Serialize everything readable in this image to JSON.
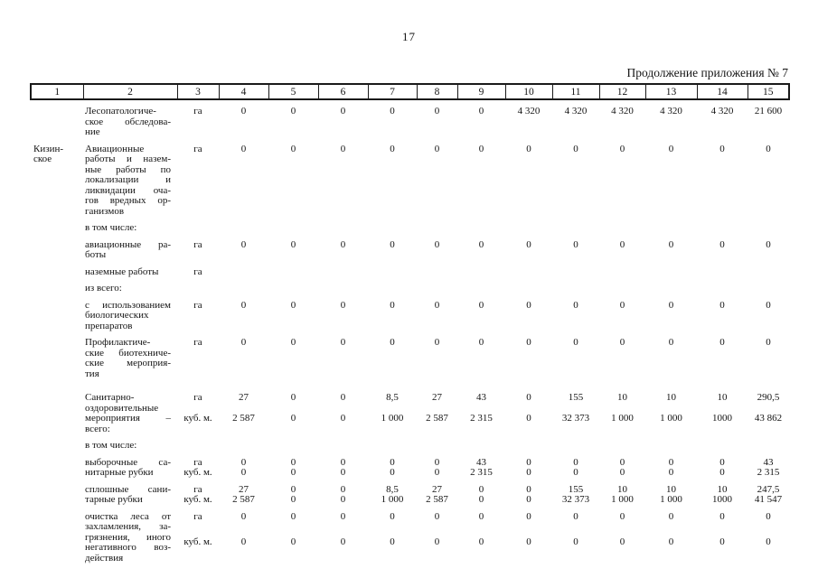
{
  "page": {
    "number": "17",
    "continuation_label": "Продолжение приложения № 7"
  },
  "table": {
    "column_headers": [
      "1",
      "2",
      "3",
      "4",
      "5",
      "6",
      "7",
      "8",
      "9",
      "10",
      "11",
      "12",
      "13",
      "14",
      "15"
    ],
    "groups": [
      {
        "region_lines": [],
        "label_lines": [
          "Лесопатологиче-",
          "ское обследова-",
          "ние"
        ],
        "units": [
          {
            "unit": "га",
            "values": [
              "0",
              "0",
              "0",
              "0",
              "0",
              "0",
              "4 320",
              "4 320",
              "4 320",
              "4 320",
              "4 320",
              "21 600"
            ]
          }
        ]
      },
      {
        "region_lines": [
          "Кизин-",
          "ское"
        ],
        "label_lines": [
          "Авиационные",
          "работы и назем-",
          "ные работы по",
          "локализации и",
          "ликвидации оча-",
          "гов вредных ор-",
          "ганизмов"
        ],
        "units": [
          {
            "unit": "га",
            "values": [
              "0",
              "0",
              "0",
              "0",
              "0",
              "0",
              "0",
              "0",
              "0",
              "0",
              "0",
              "0"
            ]
          }
        ]
      },
      {
        "region_lines": [],
        "label_lines": [
          "в том числе:"
        ],
        "units": []
      },
      {
        "region_lines": [],
        "label_lines": [
          "авиационные ра-",
          "боты"
        ],
        "units": [
          {
            "unit": "га",
            "values": [
              "0",
              "0",
              "0",
              "0",
              "0",
              "0",
              "0",
              "0",
              "0",
              "0",
              "0",
              "0"
            ]
          }
        ]
      },
      {
        "region_lines": [],
        "label_lines": [
          "наземные работы"
        ],
        "units": [
          {
            "unit": "га",
            "values": []
          }
        ]
      },
      {
        "region_lines": [],
        "label_lines": [
          "из всего:"
        ],
        "units": []
      },
      {
        "region_lines": [],
        "label_lines": [
          "с использованием",
          "биологических",
          "препаратов"
        ],
        "units": [
          {
            "unit": "га",
            "values": [
              "0",
              "0",
              "0",
              "0",
              "0",
              "0",
              "0",
              "0",
              "0",
              "0",
              "0",
              "0"
            ]
          }
        ]
      },
      {
        "region_lines": [],
        "label_lines": [
          "Профилактиче-",
          "ские биотехниче-",
          "ские мероприя-",
          "тия"
        ],
        "units": [
          {
            "unit": "га",
            "values": [
              "0",
              "0",
              "0",
              "0",
              "0",
              "0",
              "0",
              "0",
              "0",
              "0",
              "0",
              "0"
            ]
          }
        ]
      },
      {
        "gap_before": "large",
        "region_lines": [],
        "label_lines": [
          "Санитарно-",
          "оздоровительные",
          "мероприятия –",
          "всего:"
        ],
        "units": [
          {
            "unit": "га",
            "values": [
              "27",
              "0",
              "0",
              "8,5",
              "27",
              "43",
              "0",
              "155",
              "10",
              "10",
              "10",
              "290,5"
            ]
          },
          {
            "unit": "куб. м.",
            "values": [
              "2 587",
              "0",
              "0",
              "1 000",
              "2 587",
              "2 315",
              "0",
              "32 373",
              "1 000",
              "1 000",
              "1000",
              "43 862"
            ]
          }
        ]
      },
      {
        "region_lines": [],
        "label_lines": [
          "в том числе:"
        ],
        "units": []
      },
      {
        "region_lines": [],
        "label_lines": [
          "выборочные са-",
          "нитарные рубки"
        ],
        "units": [
          {
            "unit": "га",
            "values": [
              "0",
              "0",
              "0",
              "0",
              "0",
              "43",
              "0",
              "0",
              "0",
              "0",
              "0",
              "43"
            ]
          },
          {
            "unit": "куб. м.",
            "values": [
              "0",
              "0",
              "0",
              "0",
              "0",
              "2 315",
              "0",
              "0",
              "0",
              "0",
              "0",
              "2 315"
            ]
          }
        ]
      },
      {
        "region_lines": [],
        "label_lines": [
          "сплошные сани-",
          "тарные рубки"
        ],
        "units": [
          {
            "unit": "га",
            "values": [
              "27",
              "0",
              "0",
              "8,5",
              "27",
              "0",
              "0",
              "155",
              "10",
              "10",
              "10",
              "247,5"
            ]
          },
          {
            "unit": "куб. м.",
            "values": [
              "2 587",
              "0",
              "0",
              "1 000",
              "2 587",
              "0",
              "0",
              "32 373",
              "1 000",
              "1 000",
              "1000",
              "41 547"
            ]
          }
        ]
      },
      {
        "region_lines": [],
        "label_lines": [
          "очистка леса от",
          "захламления, за-",
          "грязнения, иного",
          "негативного воз-",
          "действия"
        ],
        "units": [
          {
            "unit": "га",
            "values": [
              "0",
              "0",
              "0",
              "0",
              "0",
              "0",
              "0",
              "0",
              "0",
              "0",
              "0",
              "0"
            ]
          },
          {
            "unit": "куб. м.",
            "values": [
              "0",
              "0",
              "0",
              "0",
              "0",
              "0",
              "0",
              "0",
              "0",
              "0",
              "0",
              "0"
            ]
          }
        ]
      }
    ]
  }
}
